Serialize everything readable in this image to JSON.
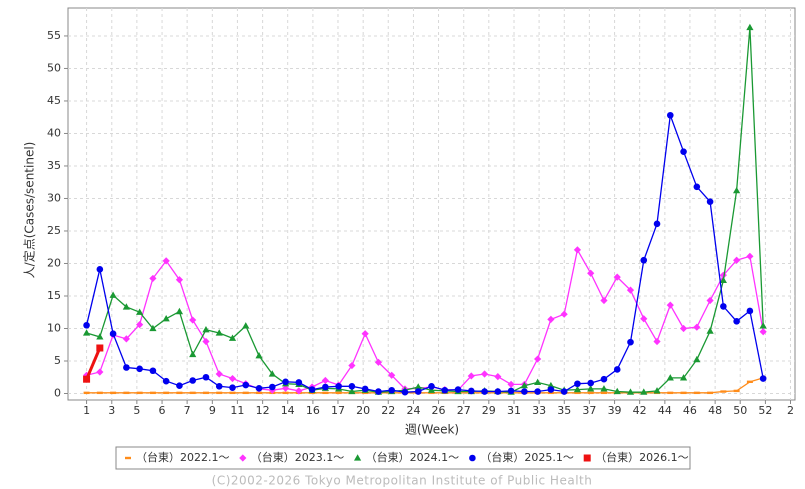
{
  "chart_data": {
    "type": "line",
    "x": [
      1,
      2,
      3,
      4,
      5,
      6,
      7,
      8,
      9,
      10,
      11,
      12,
      13,
      14,
      15,
      16,
      17,
      18,
      19,
      20,
      21,
      22,
      23,
      24,
      25,
      26,
      27,
      28,
      29,
      30,
      31,
      32,
      33,
      34,
      35,
      36,
      37,
      38,
      39,
      40,
      41,
      42,
      43,
      44,
      45,
      46,
      47,
      48,
      49,
      50,
      51,
      52
    ],
    "xlabel": "週(Week)",
    "ylabel": "人/定点(Cases/sentinel)",
    "xlim": [
      -0.4,
      54.4
    ],
    "ylim": [
      -1,
      59.3
    ],
    "xticks": [
      {
        "value": 1,
        "label": "1"
      },
      {
        "value": 2.9,
        "label": "3"
      },
      {
        "value": 4.79,
        "label": "5"
      },
      {
        "value": 6.69,
        "label": "6"
      },
      {
        "value": 8.58,
        "label": "7"
      },
      {
        "value": 10.48,
        "label": "9"
      },
      {
        "value": 12.37,
        "label": "11"
      },
      {
        "value": 14.27,
        "label": "12"
      },
      {
        "value": 16.16,
        "label": "14"
      },
      {
        "value": 18.06,
        "label": "16"
      },
      {
        "value": 19.95,
        "label": "17"
      },
      {
        "value": 21.85,
        "label": "20"
      },
      {
        "value": 23.74,
        "label": "22"
      },
      {
        "value": 25.64,
        "label": "24"
      },
      {
        "value": 27.53,
        "label": "26"
      },
      {
        "value": 29.43,
        "label": "27"
      },
      {
        "value": 31.32,
        "label": "29"
      },
      {
        "value": 33.22,
        "label": "31"
      },
      {
        "value": 35.11,
        "label": "33"
      },
      {
        "value": 37.01,
        "label": "35"
      },
      {
        "value": 38.9,
        "label": "37"
      },
      {
        "value": 40.8,
        "label": "39"
      },
      {
        "value": 42.69,
        "label": "42"
      },
      {
        "value": 44.59,
        "label": "44"
      },
      {
        "value": 46.48,
        "label": "46"
      },
      {
        "value": 48.38,
        "label": "48"
      },
      {
        "value": 50.27,
        "label": "50"
      },
      {
        "value": 52.17,
        "label": "52"
      },
      {
        "value": 54.06,
        "label": "2"
      }
    ],
    "yticks": [
      0,
      5,
      10,
      15,
      20,
      25,
      30,
      35,
      40,
      45,
      50,
      55
    ],
    "grid": true,
    "series": [
      {
        "name": "（台東）2022.1～",
        "color": "#ff8c1a",
        "marker": "dash",
        "values": [
          0.1,
          0.1,
          0.1,
          0.1,
          0.1,
          0.1,
          0.1,
          0.1,
          0.1,
          0.1,
          0.1,
          0.1,
          0.1,
          0.1,
          0.1,
          0.1,
          0.1,
          0.1,
          0.1,
          0.1,
          0.1,
          0.1,
          0.1,
          0.1,
          0.1,
          0.1,
          0.1,
          0.1,
          0.1,
          0.1,
          0.1,
          0.1,
          0.1,
          0.1,
          0.1,
          0.1,
          0.1,
          0.1,
          0.1,
          0.1,
          0.1,
          0.1,
          0.1,
          0.1,
          0.1,
          0.1,
          0.1,
          0.1,
          0.3,
          0.4,
          1.8,
          2.4
        ]
      },
      {
        "name": "（台東）2023.1～",
        "color": "#ff33ff",
        "marker": "diamond",
        "values": [
          2.8,
          3.3,
          9.0,
          8.4,
          10.6,
          17.7,
          20.4,
          17.5,
          11.3,
          8.0,
          3.0,
          2.3,
          1.5,
          0.7,
          0.5,
          0.8,
          0.4,
          1.0,
          2.0,
          1.3,
          4.3,
          9.2,
          4.8,
          2.8,
          0.7,
          0.8,
          1.0,
          0.6,
          0.5,
          2.7,
          3.0,
          2.6,
          1.4,
          1.4,
          5.3,
          11.4,
          12.2,
          22.1,
          18.5,
          14.3,
          17.9,
          15.9,
          11.5,
          8.0,
          13.6,
          10.0,
          10.2,
          14.3,
          18.2,
          20.5,
          21.1,
          9.5
        ]
      },
      {
        "name": "（台東）2024.1～",
        "color": "#1a9933",
        "marker": "triangle",
        "values": [
          9.3,
          8.7,
          15.1,
          13.3,
          12.5,
          10.0,
          11.5,
          12.6,
          6.0,
          9.8,
          9.3,
          8.5,
          10.4,
          5.8,
          3.0,
          1.5,
          1.4,
          0.5,
          0.8,
          0.7,
          0.3,
          0.5,
          0.2,
          0.3,
          0.5,
          1.0,
          0.5,
          0.4,
          0.3,
          0.3,
          0.4,
          0.3,
          0.2,
          1.2,
          1.7,
          1.2,
          0.5,
          0.6,
          0.7,
          0.7,
          0.3,
          0.2,
          0.2,
          0.4,
          2.4,
          2.4,
          5.2,
          9.6,
          17.4,
          31.2,
          56.3,
          10.4
        ]
      },
      {
        "name": "（台東）2025.1～",
        "color": "#0000ee",
        "marker": "circle",
        "values": [
          10.5,
          19.1,
          9.2,
          4.0,
          3.8,
          3.5,
          1.9,
          1.2,
          2.0,
          2.5,
          1.1,
          0.9,
          1.3,
          0.8,
          1.0,
          1.8,
          1.7,
          0.6,
          1.0,
          1.1,
          1.1,
          0.7,
          0.3,
          0.5,
          0.2,
          0.3,
          1.1,
          0.5,
          0.6,
          0.4,
          0.3,
          0.3,
          0.4,
          0.3,
          0.3,
          0.6,
          0.3,
          1.5,
          1.6,
          2.2,
          3.7,
          7.9,
          20.5,
          26.1,
          42.8,
          37.2,
          31.8,
          29.5,
          13.4,
          11.1,
          12.7,
          2.3
        ]
      },
      {
        "name": "（台東）2026.1～",
        "color": "#ee1111",
        "marker": "square",
        "values": [
          2.2,
          7.0,
          null,
          null,
          null,
          null,
          null,
          null,
          null,
          null,
          null,
          null,
          null,
          null,
          null,
          null,
          null,
          null,
          null,
          null,
          null,
          null,
          null,
          null,
          null,
          null,
          null,
          null,
          null,
          null,
          null,
          null,
          null,
          null,
          null,
          null,
          null,
          null,
          null,
          null,
          null,
          null,
          null,
          null,
          null,
          null,
          null,
          null,
          null,
          null,
          null,
          null
        ]
      }
    ],
    "footer": "(C)2002-2026 Tokyo Metropolitan Institute of Public Health"
  }
}
